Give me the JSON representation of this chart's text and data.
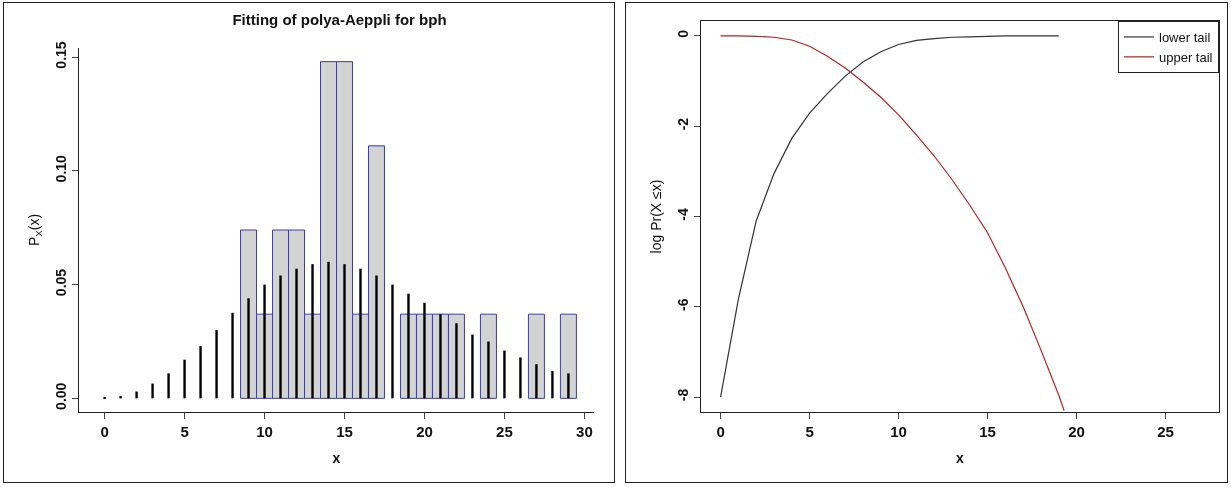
{
  "chart_data": [
    {
      "type": "bar",
      "title": "Fitting of polya-Aeppli for bph",
      "xlabel": "x",
      "ylabel": "P$_{X}$(x)",
      "x": [
        0,
        1,
        2,
        3,
        4,
        5,
        6,
        7,
        8,
        9,
        10,
        11,
        12,
        13,
        14,
        15,
        16,
        17,
        18,
        19,
        20,
        21,
        22,
        23,
        24,
        25,
        26,
        27,
        28,
        29
      ],
      "series": [
        {
          "color": "#d3d3d3",
          "values": [
            0,
            0,
            0,
            0,
            0,
            0,
            0,
            0,
            0,
            0.074,
            0.037,
            0.074,
            0.074,
            0.037,
            0.148,
            0.148,
            0.037,
            0.111,
            0,
            0.037,
            0.037,
            0.037,
            0.037,
            0,
            0.037,
            0,
            0,
            0.037,
            0,
            0.037
          ]
        },
        {
          "color": "#000000",
          "values": [
            0.0003,
            0.001,
            0.003,
            0.0065,
            0.011,
            0.017,
            0.023,
            0.03,
            0.0376,
            0.044,
            0.05,
            0.054,
            0.057,
            0.059,
            0.06,
            0.059,
            0.057,
            0.054,
            0.05,
            0.046,
            0.042,
            0.037,
            0.033,
            0.028,
            0.025,
            0.021,
            0.018,
            0.015,
            0.012,
            0.011
          ]
        }
      ],
      "xlim": [
        -1.6,
        30.6
      ],
      "xticks": [
        0,
        5,
        10,
        15,
        20,
        25,
        30
      ],
      "ylim": [
        -0.006,
        0.154
      ],
      "yticks": [
        {
          "value": 0,
          "label": "0.00"
        },
        {
          "value": 0.05,
          "label": "0.05"
        },
        {
          "value": 0.1,
          "label": "0.10"
        },
        {
          "value": 0.15,
          "label": "0.15"
        }
      ],
      "grid": false,
      "legend": false
    },
    {
      "type": "line",
      "xlabel": "x",
      "ylabel": "log Pr(X ≤x)",
      "series": [
        {
          "name": "lower tail",
          "color": "#333333",
          "x": [
            0,
            1,
            2,
            3,
            4,
            5,
            6,
            7,
            8,
            9,
            10,
            11,
            12,
            13,
            14,
            15,
            16,
            17,
            18,
            19
          ],
          "values": [
            -8,
            -5.83,
            -4.1,
            -3.05,
            -2.27,
            -1.71,
            -1.28,
            -0.89,
            -0.58,
            -0.35,
            -0.19,
            -0.1,
            -0.06,
            -0.03,
            -0.02,
            -0.01,
            0,
            0,
            0,
            0
          ]
        },
        {
          "name": "upper tail",
          "color": "#b22222",
          "x": [
            0,
            1,
            2,
            3,
            4,
            5,
            6,
            7,
            8,
            9,
            10,
            11,
            12,
            13,
            14,
            15,
            16,
            17,
            18,
            19,
            19.3
          ],
          "values": [
            0,
            0,
            -0.01,
            -0.03,
            -0.09,
            -0.23,
            -0.45,
            -0.71,
            -1.02,
            -1.36,
            -1.75,
            -2.19,
            -2.66,
            -3.18,
            -3.75,
            -4.36,
            -5.14,
            -6.0,
            -6.96,
            -7.96,
            -8.3
          ]
        }
      ],
      "xlim": [
        -1.1,
        28
      ],
      "xticks": [
        0,
        5,
        10,
        15,
        20,
        25
      ],
      "ylim": [
        -8.33,
        0.33
      ],
      "yticks": [
        0,
        -2,
        -4,
        -6,
        -8
      ],
      "grid": false,
      "legend": "top right"
    }
  ]
}
